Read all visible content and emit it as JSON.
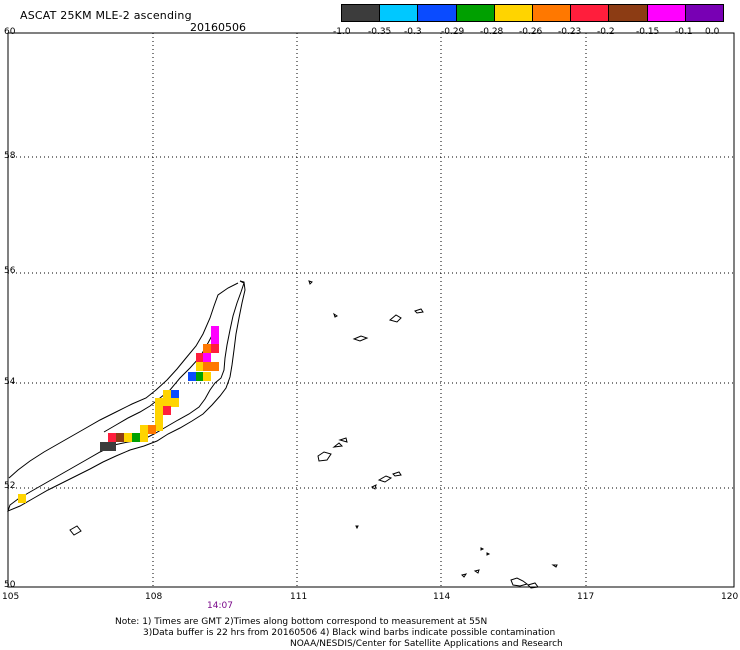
{
  "header": {
    "title": "ASCAT 25KM MLE-2 ascending",
    "date": "20160506"
  },
  "legend": {
    "colors": [
      "#3c3c3c",
      "#00c8ff",
      "#0a4bff",
      "#00a000",
      "#ffd400",
      "#ff7800",
      "#ff1e3c",
      "#8c3c14",
      "#ff00ff",
      "#7800b4"
    ],
    "labels": [
      "-1.0",
      "-0.35",
      "-0.3",
      "-0.29",
      "-0.28",
      "-0.26",
      "-0.23",
      "-0.2",
      "-0.15",
      "-0.1",
      "0.0"
    ]
  },
  "map": {
    "lat_labels": [
      "60",
      "58",
      "56",
      "54",
      "52",
      "50"
    ],
    "lon_labels": [
      "105",
      "108",
      "111",
      "114",
      "117",
      "120"
    ],
    "time_label": "14:07"
  },
  "notes": {
    "line1": "Note: 1) Times are GMT 2)Times along bottom correspond to measurement at 55N",
    "line2": "3)Data buffer is 22 hrs from 20160506 4) Black wind barbs indicate possible contamination",
    "line3": "NOAA/NESDIS/Center for Satellite Applications and Research"
  }
}
